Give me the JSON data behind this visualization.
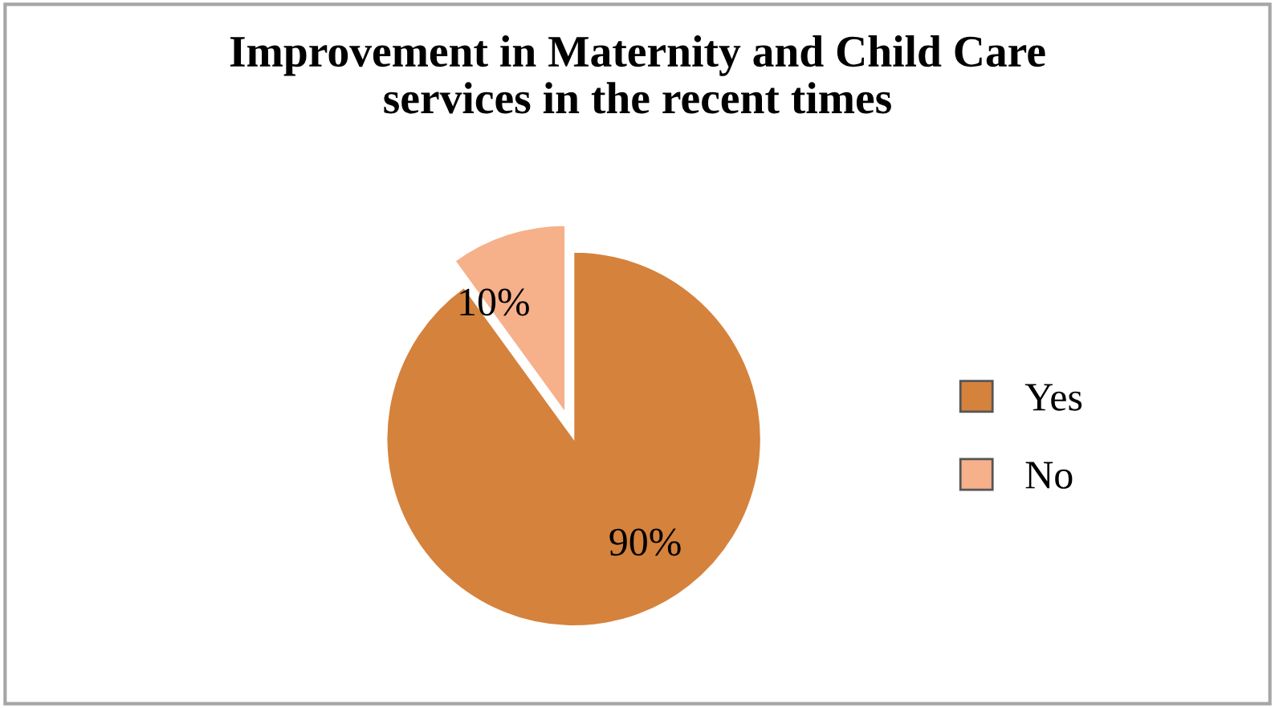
{
  "chart_data": {
    "type": "pie",
    "title": "Improvement in Maternity and Child Care\nservices in the recent times",
    "categories": [
      "Yes",
      "No"
    ],
    "values": [
      90,
      10
    ],
    "colors": [
      "#d5823d",
      "#f6b08a"
    ],
    "value_labels": [
      "90%",
      "10%"
    ],
    "legend": "right"
  }
}
